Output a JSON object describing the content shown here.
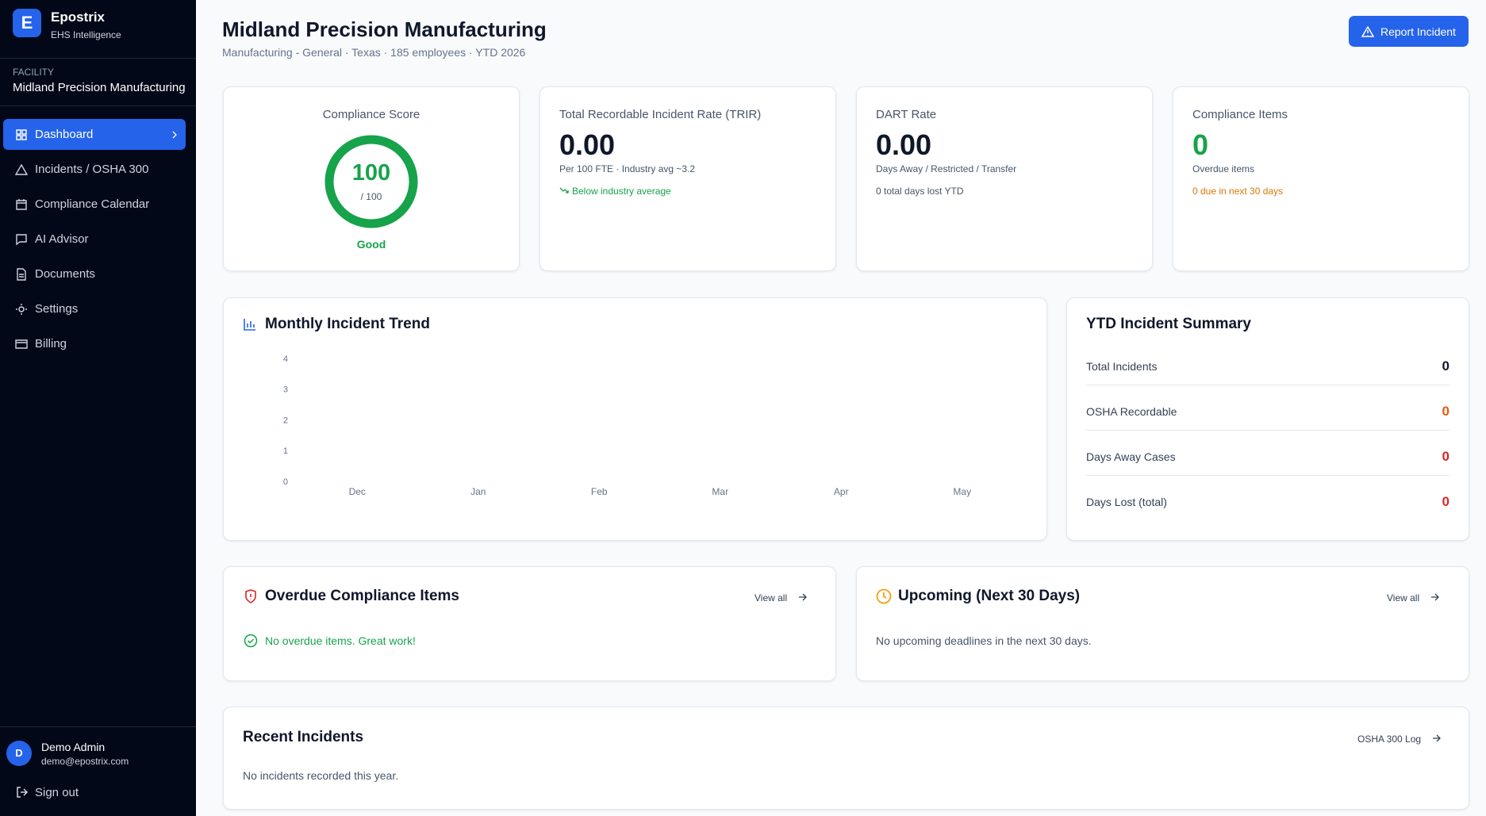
{
  "sidebar": {
    "brand": "Epostrix",
    "tagline": "EHS Intelligence",
    "logo_letter": "E",
    "facility_label": "FACILITY",
    "facility_name": "Midland Precision Manufacturing",
    "nav": [
      "Dashboard",
      "Incidents / OSHA 300",
      "Compliance Calendar",
      "AI Advisor",
      "Documents",
      "Settings",
      "Billing"
    ],
    "user": {
      "initial": "D",
      "name": "Demo Admin",
      "email": "demo@epostrix.com"
    },
    "sign_out": "Sign out"
  },
  "header": {
    "title": "Midland Precision Manufacturing",
    "subtitle": "Manufacturing - General · Texas · 185 employees · YTD 2026",
    "action": "Report Incident"
  },
  "kpis": {
    "compliance": {
      "title": "Compliance Score",
      "score": 100,
      "score_max": {
        "value": 100,
        "label": "/ 100"
      },
      "rating": "Good"
    },
    "trir": {
      "title": "Total Recordable Incident Rate (TRIR)",
      "value": "0.00",
      "note": "Per 100 FTE · Industry avg ~3.2",
      "status": "Below industry average"
    },
    "dart": {
      "title": "DART Rate",
      "value": "0.00",
      "note": "Days Away / Restricted / Transfer",
      "status": "0 total days lost YTD"
    },
    "items": {
      "title": "Compliance Items",
      "value": 0,
      "note": "Overdue items",
      "status": "0 due in next 30 days"
    }
  },
  "chart_data": {
    "type": "bar",
    "title": "Monthly Incident Trend",
    "categories": [
      "Dec",
      "Jan",
      "Feb",
      "Mar",
      "Apr",
      "May"
    ],
    "values": [
      0,
      0,
      0,
      0,
      0,
      0
    ],
    "color": "#2563eb",
    "ylim": [
      0,
      4
    ],
    "yticks": [
      0,
      1,
      2,
      3,
      4
    ]
  },
  "summary": {
    "title": "YTD Incident Summary",
    "rows": [
      {
        "label": "Total Incidents",
        "value": 0,
        "color": "#0f172a"
      },
      {
        "label": "OSHA Recordable",
        "value": 0,
        "color": "#ea580c"
      },
      {
        "label": "Days Away Cases",
        "value": 0,
        "color": "#dc2626"
      },
      {
        "label": "Days Lost (total)",
        "value": 0,
        "color": "#dc2626"
      }
    ]
  },
  "overdue": {
    "title": "Overdue Compliance Items",
    "link": "View all",
    "message": "No overdue items. Great work!"
  },
  "upcoming": {
    "title": "Upcoming (Next 30 Days)",
    "link": "View all",
    "message": "No upcoming deadlines in the next 30 days."
  },
  "recent": {
    "title": "Recent Incidents",
    "link": "OSHA 300 Log",
    "message": "No incidents recorded this year."
  }
}
